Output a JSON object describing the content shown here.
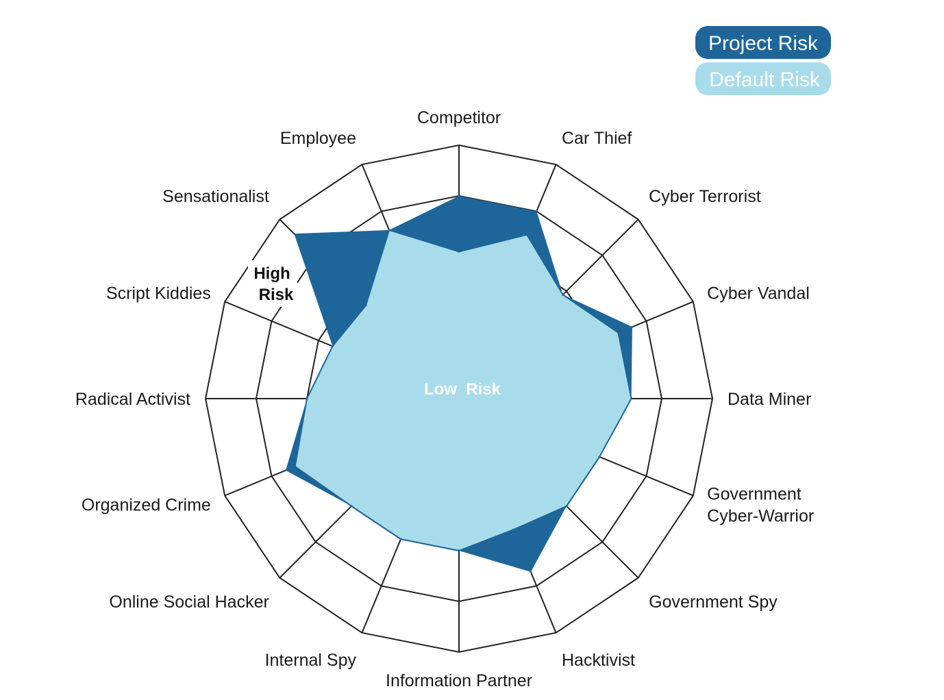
{
  "chart_data": {
    "type": "radar",
    "axes": [
      "Competitor",
      "Car Thief",
      "Cyber Terrorist",
      "Cyber Vandal",
      "Data Miner",
      "Government Cyber-Warrior",
      "Government Spy",
      "Hacktivist",
      "Information Partner",
      "Internal Spy",
      "Online Social Hacker",
      "Organized Crime",
      "Radical Activist",
      "Script Kiddies",
      "Sensationalist",
      "Employee"
    ],
    "axis_label_lines": [
      [
        "Competitor"
      ],
      [
        "Car Thief"
      ],
      [
        "Cyber Terrorist"
      ],
      [
        "Cyber Vandal"
      ],
      [
        "Data Miner"
      ],
      [
        "Government",
        "Cyber-Warrior"
      ],
      [
        "Government Spy"
      ],
      [
        "Hacktivist"
      ],
      [
        "Information Partner"
      ],
      [
        "Internal Spy"
      ],
      [
        "Online Social Hacker"
      ],
      [
        "Organized Crime"
      ],
      [
        "Radical Activist"
      ],
      [
        "Script Kiddies"
      ],
      [
        "Sensationalist"
      ],
      [
        "Employee"
      ]
    ],
    "levels": 5,
    "range": [
      0,
      5
    ],
    "series": [
      {
        "name": "Project Risk",
        "color": "#1e6699",
        "values": [
          4.0,
          4.0,
          2.9,
          3.7,
          3.4,
          3.0,
          3.0,
          3.7,
          3.0,
          3.0,
          3.0,
          3.7,
          3.0,
          2.7,
          4.6,
          3.6
        ]
      },
      {
        "name": "Default Risk",
        "color": "#a9dcea",
        "values": [
          2.9,
          3.5,
          2.9,
          3.4,
          3.4,
          3.0,
          3.0,
          2.8,
          3.0,
          3.0,
          3.0,
          3.5,
          3.0,
          2.7,
          2.6,
          3.6
        ]
      }
    ],
    "inner_labels": {
      "high": [
        "High",
        "Risk"
      ],
      "low": "Low  Risk"
    },
    "legend_position": "top-right",
    "grid_color": "#222222"
  }
}
